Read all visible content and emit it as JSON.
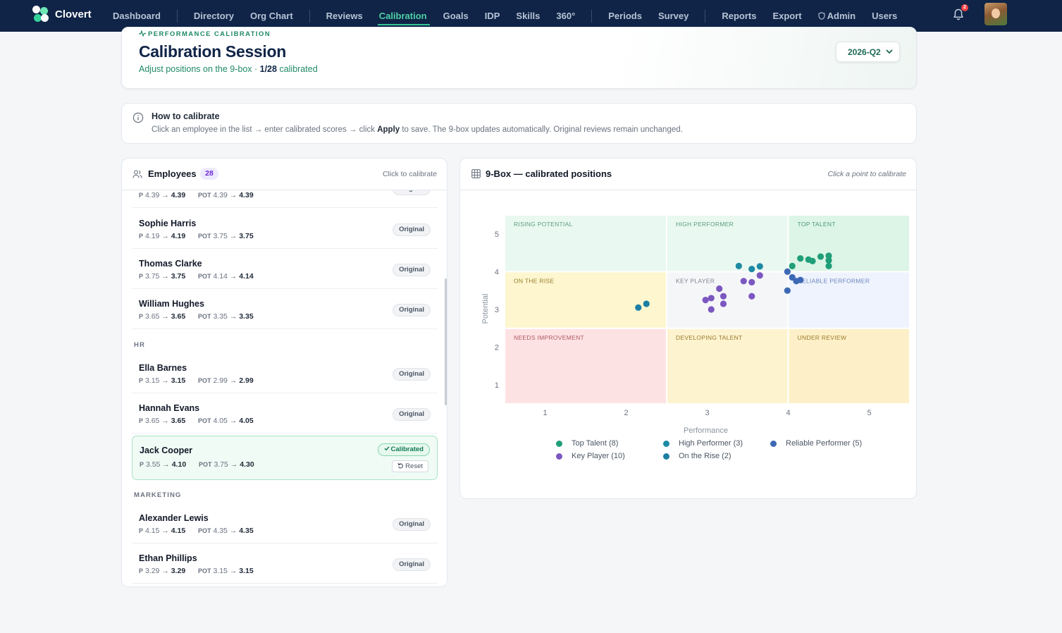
{
  "brand": {
    "name": "Clovert"
  },
  "nav": [
    {
      "label": "Dashboard"
    },
    {
      "sep": true
    },
    {
      "label": "Directory"
    },
    {
      "label": "Org Chart"
    },
    {
      "sep": true
    },
    {
      "label": "Reviews"
    },
    {
      "label": "Calibration",
      "active": true
    },
    {
      "label": "Goals"
    },
    {
      "label": "IDP"
    },
    {
      "label": "Skills"
    },
    {
      "label": "360°"
    },
    {
      "sep": true
    },
    {
      "label": "Periods"
    },
    {
      "label": "Survey"
    },
    {
      "sep": true
    },
    {
      "label": "Reports"
    },
    {
      "label": "Export"
    },
    {
      "label": "Admin",
      "icon": "shield-icon"
    },
    {
      "label": "Users"
    }
  ],
  "notifications": {
    "count": "2"
  },
  "header": {
    "eyebrow": "PERFORMANCE CALIBRATION",
    "title": "Calibration Session",
    "subtitle_prefix": "Adjust positions on the 9-box · ",
    "subtitle_progress": "1/28",
    "subtitle_suffix": " calibrated",
    "period": "2026-Q2"
  },
  "info": {
    "title": "How to calibrate",
    "text_prefix": "Click an employee in the list → enter calibrated scores → click ",
    "text_bold": "Apply",
    "text_suffix": " to save. The 9-box updates automatically. Original reviews remain unchanged."
  },
  "employees": {
    "title": "Employees",
    "count": "28",
    "hint": "Click to calibrate",
    "p_label": "P",
    "pot_label": "POT",
    "arrow": "→",
    "original_label": "Original",
    "calibrated_label": "Calibrated",
    "reset_label": "Reset",
    "rows": [
      {
        "kind": "row",
        "name": "",
        "p_from": "4.39",
        "p_to": "4.39",
        "pot_from": "4.39",
        "pot_to": "4.39",
        "status": "original",
        "partial": true
      },
      {
        "kind": "row",
        "name": "Sophie Harris",
        "p_from": "4.19",
        "p_to": "4.19",
        "pot_from": "3.75",
        "pot_to": "3.75",
        "status": "original"
      },
      {
        "kind": "row",
        "name": "Thomas Clarke",
        "p_from": "3.75",
        "p_to": "3.75",
        "pot_from": "4.14",
        "pot_to": "4.14",
        "status": "original"
      },
      {
        "kind": "row",
        "name": "William Hughes",
        "p_from": "3.65",
        "p_to": "3.65",
        "pot_from": "3.35",
        "pot_to": "3.35",
        "status": "original"
      },
      {
        "kind": "dept",
        "name": "HR"
      },
      {
        "kind": "row",
        "name": "Ella Barnes",
        "p_from": "3.15",
        "p_to": "3.15",
        "pot_from": "2.99",
        "pot_to": "2.99",
        "status": "original"
      },
      {
        "kind": "row",
        "name": "Hannah Evans",
        "p_from": "3.65",
        "p_to": "3.65",
        "pot_from": "4.05",
        "pot_to": "4.05",
        "status": "original"
      },
      {
        "kind": "row",
        "name": "Jack Cooper",
        "p_from": "3.55",
        "p_to": "4.10",
        "pot_from": "3.75",
        "pot_to": "4.30",
        "status": "calibrated"
      },
      {
        "kind": "dept",
        "name": "MARKETING"
      },
      {
        "kind": "row",
        "name": "Alexander Lewis",
        "p_from": "4.15",
        "p_to": "4.15",
        "pot_from": "4.35",
        "pot_to": "4.35",
        "status": "original"
      },
      {
        "kind": "row",
        "name": "Ethan Phillips",
        "p_from": "3.29",
        "p_to": "3.29",
        "pot_from": "3.15",
        "pot_to": "3.15",
        "status": "original"
      }
    ]
  },
  "ninebox": {
    "title": "9-Box — calibrated positions",
    "hint": "Click a point to calibrate",
    "cells": [
      {
        "label": "RISING POTENTIAL",
        "color": "#e9f8f0",
        "text": "#5c9e80"
      },
      {
        "label": "HIGH PERFORMER",
        "color": "#e9f8f0",
        "text": "#5c9e80"
      },
      {
        "label": "TOP TALENT",
        "color": "#dcf5e6",
        "text": "#4f9a76"
      },
      {
        "label": "ON THE RISE",
        "color": "#fdf6cf",
        "text": "#9a7a2d"
      },
      {
        "label": "KEY PLAYER",
        "color": "#f5f6f8",
        "text": "#7c8390"
      },
      {
        "label": "RELIABLE PERFORMER",
        "color": "#eef3fd",
        "text": "#6c84bd"
      },
      {
        "label": "NEEDS IMPROVEMENT",
        "color": "#fde2e4",
        "text": "#b05a62"
      },
      {
        "label": "DEVELOPING TALENT",
        "color": "#fdf3cf",
        "text": "#9a7a2d"
      },
      {
        "label": "UNDER REVIEW",
        "color": "#fdf0c8",
        "text": "#9a7a2d"
      }
    ]
  },
  "chart_data": {
    "type": "scatter",
    "title": "9-Box — calibrated positions",
    "xlabel": "Performance",
    "ylabel": "Potential",
    "x_ticks": [
      1,
      2,
      3,
      4,
      5
    ],
    "y_ticks": [
      1,
      2,
      3,
      4,
      5
    ],
    "xlim": [
      0.5,
      5.5
    ],
    "ylim": [
      0.5,
      5.5
    ],
    "x_bands": [
      2.5,
      4.0
    ],
    "y_bands": [
      2.5,
      4.0
    ],
    "grid": false,
    "legend_position": "bottom",
    "series": [
      {
        "name": "Top Talent (8)",
        "color": "#1f9e78",
        "points": [
          [
            4.05,
            4.15
          ],
          [
            4.15,
            4.35
          ],
          [
            4.25,
            4.32
          ],
          [
            4.3,
            4.28
          ],
          [
            4.4,
            4.4
          ],
          [
            4.5,
            4.42
          ],
          [
            4.5,
            4.3
          ],
          [
            4.5,
            4.15
          ]
        ]
      },
      {
        "name": "High Performer (3)",
        "color": "#1d8aa3",
        "points": [
          [
            3.39,
            4.15
          ],
          [
            3.55,
            4.07
          ],
          [
            3.65,
            4.14
          ]
        ]
      },
      {
        "name": "Reliable Performer (5)",
        "color": "#3d68b5",
        "points": [
          [
            3.99,
            4.0
          ],
          [
            4.05,
            3.85
          ],
          [
            4.1,
            3.75
          ],
          [
            4.15,
            3.78
          ],
          [
            3.99,
            3.5
          ]
        ]
      },
      {
        "name": "Key Player (10)",
        "color": "#7b57c0",
        "points": [
          [
            2.98,
            3.25
          ],
          [
            3.05,
            3.3
          ],
          [
            3.05,
            3.0
          ],
          [
            3.15,
            3.55
          ],
          [
            3.2,
            3.35
          ],
          [
            3.2,
            3.15
          ],
          [
            3.45,
            3.75
          ],
          [
            3.55,
            3.72
          ],
          [
            3.55,
            3.35
          ],
          [
            3.65,
            3.9
          ]
        ]
      },
      {
        "name": "On the Rise (2)",
        "color": "#1d7ea3",
        "points": [
          [
            2.15,
            3.05
          ],
          [
            2.25,
            3.15
          ]
        ]
      }
    ]
  }
}
